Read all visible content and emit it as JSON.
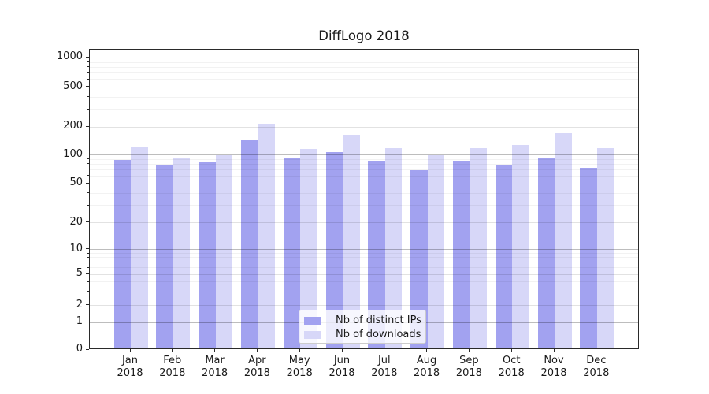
{
  "title": "DiffLogo 2018",
  "chart_data": {
    "type": "bar",
    "title": "DiffLogo 2018",
    "x_categories": [
      "Jan",
      "Feb",
      "Mar",
      "Apr",
      "May",
      "Jun",
      "Jul",
      "Aug",
      "Sep",
      "Oct",
      "Nov",
      "Dec"
    ],
    "x_year": "2018",
    "series": [
      {
        "name": "Nb of distinct IPs",
        "color": "#a2a2f0",
        "values": [
          85,
          76,
          81,
          138,
          88,
          104,
          83,
          66,
          84,
          76,
          88,
          70
        ]
      },
      {
        "name": "Nb of downloads",
        "color": "#d7d7f8",
        "values": [
          118,
          91,
          96,
          206,
          112,
          158,
          114,
          95,
          113,
          122,
          164,
          114
        ]
      }
    ],
    "y_axis": {
      "scale": "log-like",
      "tick_values": [
        0,
        1,
        2,
        5,
        10,
        20,
        50,
        100,
        200,
        500,
        1000
      ]
    },
    "legend": {
      "position": "lower-center"
    },
    "grid": "horizontal"
  }
}
